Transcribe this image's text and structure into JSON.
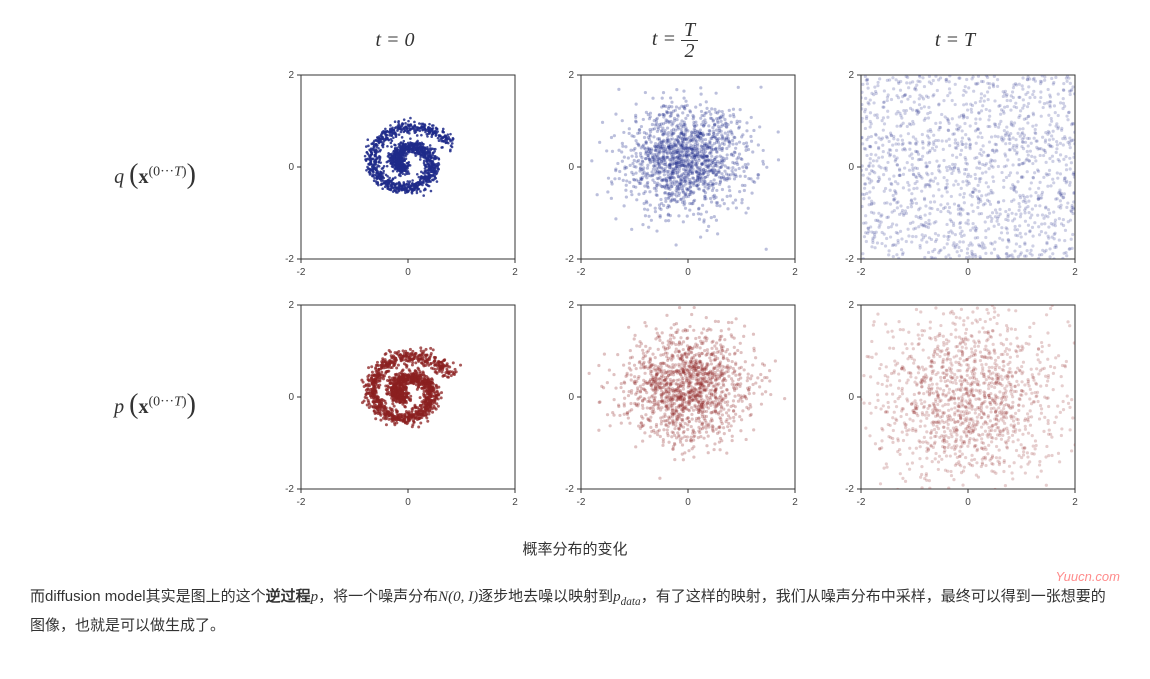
{
  "headers": {
    "t0": "t = 0",
    "t1": "t = T/2",
    "t2": "t = T"
  },
  "rows": {
    "q": "q (x^(0···T))",
    "p": "p (x^(0···T))"
  },
  "axis": {
    "xlim": [
      -2,
      2
    ],
    "ylim": [
      -2,
      2
    ],
    "ticks": [
      -2,
      0,
      2
    ],
    "tick_fontsize": 10,
    "tick_color": "#444444",
    "border_color": "#333333"
  },
  "spiral": {
    "turns": 1.6,
    "a": 0.1,
    "b": 0.45,
    "n_points": 1400,
    "jitter_sigma": 0.07
  },
  "colors": {
    "q": "#1e2a8a",
    "p": "#8b2020",
    "bg": "#ffffff"
  },
  "cells": [
    {
      "id": "q0",
      "color_key": "q",
      "noise": 0.0,
      "opacity": 0.85,
      "r": 1.3,
      "mode": "spiral"
    },
    {
      "id": "q1",
      "color_key": "q",
      "noise": 0.42,
      "opacity": 0.3,
      "r": 1.6,
      "mode": "spiral"
    },
    {
      "id": "q2",
      "color_key": "q",
      "noise": 0.0,
      "opacity": 0.22,
      "r": 1.6,
      "mode": "uniform"
    },
    {
      "id": "p0",
      "color_key": "p",
      "noise": 0.04,
      "opacity": 0.75,
      "r": 1.5,
      "mode": "spiral"
    },
    {
      "id": "p1",
      "color_key": "p",
      "noise": 0.45,
      "opacity": 0.28,
      "r": 1.6,
      "mode": "spiral"
    },
    {
      "id": "p2",
      "color_key": "p",
      "noise": 0.0,
      "opacity": 0.22,
      "r": 1.6,
      "mode": "gaussian"
    }
  ],
  "caption": "概率分布的变化",
  "body_parts": {
    "a": "而diffusion model其实是图上的这个",
    "b": "逆过程",
    "c": "，将一个噪声分布",
    "d": "逐步地去噪以映射到",
    "e": "，有了这样的映射，我们从噪声分布中采样，最终可以得到一张想要的图像，也就是可以做生成了。"
  },
  "math": {
    "p": "p",
    "N": "N(0, I)",
    "pdata": "p",
    "pdata_sub": "data"
  },
  "watermark": "Yuucn.com"
}
